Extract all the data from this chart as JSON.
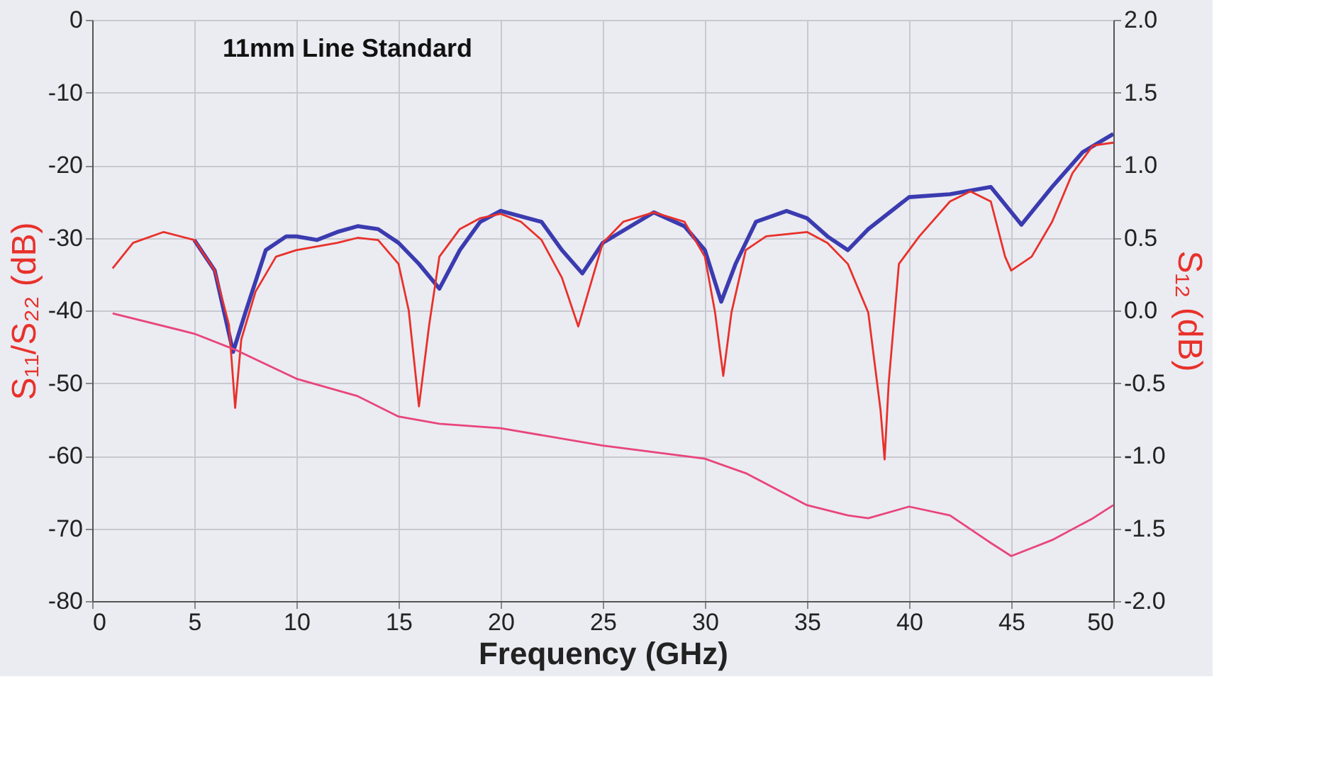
{
  "chart_data": {
    "type": "line",
    "title": "11mm Line Standard",
    "xlabel": "Frequency (GHz)",
    "ylabel": "S₁₁/S₂₂ (dB)",
    "y2label": "S₁₂ (dB)",
    "xlim": [
      0,
      50
    ],
    "xticks": [
      0,
      5,
      10,
      15,
      20,
      25,
      30,
      35,
      40,
      45,
      50
    ],
    "ylim": [
      -80,
      0
    ],
    "yticks": [
      -80,
      -70,
      -60,
      -50,
      -40,
      -30,
      -20,
      -10,
      0
    ],
    "y2lim": [
      -2,
      2
    ],
    "y2ticks": [
      {
        "value": -2,
        "label": "-2.0"
      },
      {
        "value": -1.5,
        "label": "-1.5"
      },
      {
        "value": -1,
        "label": "-1.0"
      },
      {
        "value": -0.5,
        "label": "-0.5"
      },
      {
        "value": 0,
        "label": "0.0"
      },
      {
        "value": 0.5,
        "label": "0.5"
      },
      {
        "value": 1,
        "label": "1.0"
      },
      {
        "value": 1.5,
        "label": "1.5"
      },
      {
        "value": 2,
        "label": "2.0"
      }
    ],
    "grid": true,
    "line_style": "solid",
    "marker": "none",
    "series": [
      {
        "color": "#3b3bb0",
        "x": [
          5,
          6,
          6.9,
          7.5,
          8.5,
          9.5,
          10,
          11,
          12,
          13,
          14,
          15,
          16,
          17,
          18,
          19,
          20,
          22,
          23,
          24,
          25,
          27.5,
          29,
          30,
          30.8,
          31.5,
          32.5,
          34,
          35,
          36,
          37,
          38,
          40,
          42,
          44,
          45.5,
          47,
          48.5,
          50
        ],
        "values": [
          -30.3,
          -34.5,
          -45.7,
          -40.3,
          -31.7,
          -29.8,
          -29.8,
          -30.3,
          -29.2,
          -28.4,
          -28.8,
          -30.7,
          -33.6,
          -37,
          -31.7,
          -27.8,
          -26.3,
          -27.8,
          -31.7,
          -34.9,
          -30.7,
          -26.5,
          -28.4,
          -31.7,
          -38.8,
          -33.6,
          -27.8,
          -26.3,
          -27.3,
          -29.8,
          -31.7,
          -28.8,
          -24.4,
          -24,
          -23,
          -28.2,
          -23,
          -18.2,
          -15.7
        ]
      },
      {
        "color": "#e8312a",
        "x": [
          1,
          2,
          3.5,
          5,
          6,
          6.7,
          7,
          7.3,
          8,
          9,
          10,
          12,
          13,
          14,
          15,
          15.5,
          16,
          16.5,
          17,
          18,
          19,
          20,
          21,
          22,
          23,
          23.8,
          24.3,
          25,
          26,
          27.5,
          29,
          30,
          30.5,
          30.9,
          31.3,
          32,
          33,
          35,
          36,
          37,
          38,
          38.6,
          38.8,
          39,
          39.5,
          40.5,
          42,
          43,
          44,
          44.7,
          45,
          46,
          47,
          48,
          49,
          50
        ],
        "values": [
          -34.2,
          -30.7,
          -29.2,
          -30.3,
          -34.5,
          -42,
          -53.4,
          -44,
          -37.4,
          -32.6,
          -31.7,
          -30.7,
          -30,
          -30.3,
          -33.6,
          -40,
          -53.2,
          -42,
          -32.6,
          -28.8,
          -27.3,
          -26.7,
          -27.8,
          -30.3,
          -35.5,
          -42.2,
          -37.4,
          -30.7,
          -27.8,
          -26.5,
          -27.8,
          -32.6,
          -40.3,
          -49,
          -40.3,
          -31.7,
          -29.8,
          -29.2,
          -30.7,
          -33.6,
          -40.3,
          -53.7,
          -60.5,
          -50,
          -33.6,
          -29.8,
          -25,
          -23.6,
          -25,
          -32.6,
          -34.5,
          -32.6,
          -27.8,
          -21.1,
          -17.3,
          -16.9
        ]
      },
      {
        "color": "#e8457a",
        "axis": "y2",
        "x": [
          1,
          5,
          7,
          10,
          13,
          15,
          17,
          20,
          25,
          30,
          32,
          35,
          37,
          38,
          40,
          42,
          44,
          45,
          47,
          49,
          50
        ],
        "values": [
          -0.02,
          -0.16,
          -0.27,
          -0.47,
          -0.59,
          -0.73,
          -0.78,
          -0.81,
          -0.93,
          -1.02,
          -1.12,
          -1.34,
          -1.41,
          -1.43,
          -1.35,
          -1.41,
          -1.6,
          -1.69,
          -1.58,
          -1.43,
          -1.34
        ]
      }
    ]
  }
}
